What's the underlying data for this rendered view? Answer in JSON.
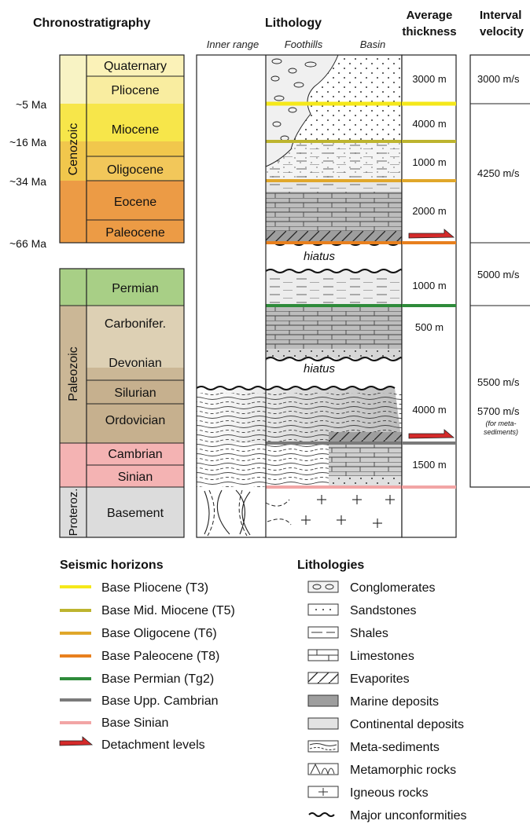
{
  "headers": {
    "chrono": "Chronostratigraphy",
    "litho": "Lithology",
    "thickness": [
      "Average",
      "thickness"
    ],
    "velocity": [
      "Interval",
      "velocity"
    ],
    "sub_inner": "Inner range",
    "sub_foothills": "Foothills",
    "sub_basin": "Basin"
  },
  "eras": {
    "cenozoic": "Cenozoic",
    "paleozoic": "Paleozoic",
    "proterozoic": "Proteroz."
  },
  "periods": {
    "quaternary": "Quaternary",
    "pliocene": "Pliocene",
    "miocene": "Miocene",
    "oligocene": "Oligocene",
    "eocene": "Eocene",
    "paleocene": "Paleocene",
    "permian": "Permian",
    "carbonifer": "Carbonifer.",
    "devonian": "Devonian",
    "silurian": "Silurian",
    "ordovician": "Ordovician",
    "cambrian": "Cambrian",
    "sinian": "Sinian",
    "basement": "Basement"
  },
  "ages": [
    "~5 Ma",
    "~16 Ma",
    "~34 Ma",
    "~66 Ma"
  ],
  "thicknesses": [
    "3000 m",
    "4000 m",
    "1000 m",
    "2000 m",
    "1000 m",
    "500 m",
    "4000 m",
    "1500 m"
  ],
  "velocities": [
    "3000 m/s",
    "4250 m/s",
    "5000 m/s",
    "5500 m/s",
    "5700 m/s"
  ],
  "velocity_note": [
    "(for meta-",
    "sediments)"
  ],
  "hiatus": "hiatus",
  "colors": {
    "T3": "#f5e81a",
    "T5": "#bdb42e",
    "T6": "#e0a72a",
    "T8": "#e8801e",
    "Tg2": "#2e8b3a",
    "cambrian_line": "#7a7a7a",
    "sinian_line": "#f2a5a5",
    "detachment": "#d42a2a"
  },
  "legend_horizons": {
    "title": "Seismic horizons",
    "items": [
      {
        "label": "Base Pliocene (T3)",
        "color": "#f5e81a"
      },
      {
        "label": "Base Mid. Miocene (T5)",
        "color": "#bdb42e"
      },
      {
        "label": "Base Oligocene (T6)",
        "color": "#e0a72a"
      },
      {
        "label": "Base Paleocene (T8)",
        "color": "#e8801e"
      },
      {
        "label": "Base Permian (Tg2)",
        "color": "#2e8b3a"
      },
      {
        "label": "Base Upp. Cambrian",
        "color": "#7a7a7a"
      },
      {
        "label": "Base Sinian",
        "color": "#f2a5a5"
      },
      {
        "label": "Detachment levels",
        "color": "#d42a2a"
      }
    ]
  },
  "legend_litho": {
    "title": "Lithologies",
    "items": [
      {
        "label": "Conglomerates",
        "icon": "conglomerate-swatch"
      },
      {
        "label": "Sandstones",
        "icon": "sandstone-swatch"
      },
      {
        "label": "Shales",
        "icon": "shale-swatch"
      },
      {
        "label": "Limestones",
        "icon": "limestone-swatch"
      },
      {
        "label": "Evaporites",
        "icon": "evaporite-swatch"
      },
      {
        "label": "Marine deposits",
        "icon": "marine-swatch"
      },
      {
        "label": "Continental deposits",
        "icon": "continental-swatch"
      },
      {
        "label": "Meta-sediments",
        "icon": "metasediment-swatch"
      },
      {
        "label": "Metamorphic rocks",
        "icon": "metamorphic-swatch"
      },
      {
        "label": "Igneous rocks",
        "icon": "igneous-swatch"
      },
      {
        "label": "Major unconformities",
        "icon": "unconformity-swatch"
      }
    ]
  }
}
